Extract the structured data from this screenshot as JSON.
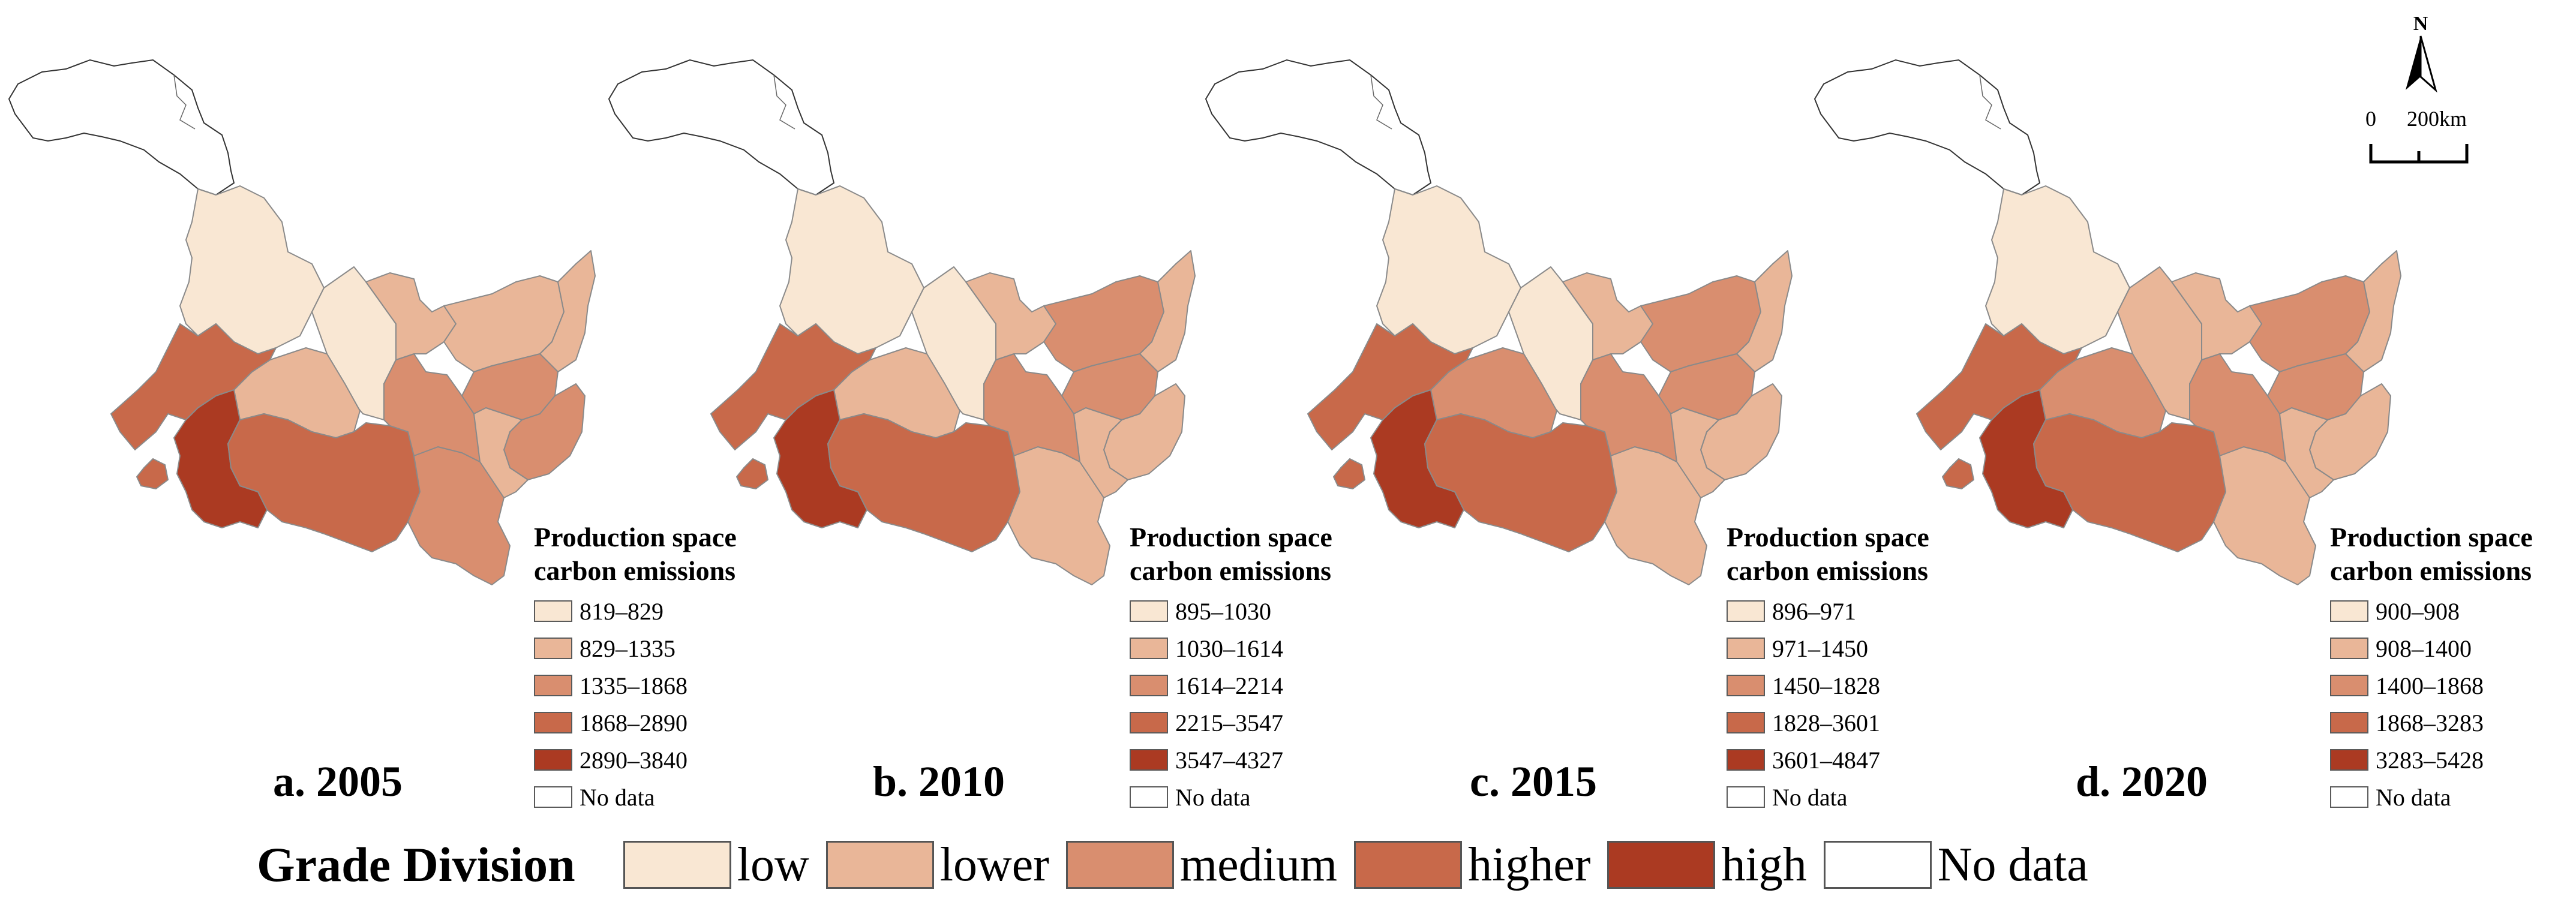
{
  "maps": [
    {
      "label": "a. 2005",
      "fills": [
        "#f9e7d3",
        "#f9e7d3",
        "#e9b698",
        "#c8694a",
        "#c8694a",
        "#ab3a22",
        "#c8694a",
        "#d98e6f",
        "#d98e6f",
        "#e9b698",
        "#e9b698",
        "#e9b698",
        "#d98e6f",
        "#d98e6f",
        "#e9b698"
      ],
      "legend": {
        "title_line1": "Production space",
        "title_line2": "carbon emissions",
        "items": [
          "819–829",
          "829–1335",
          "1335–1868",
          "1868–2890",
          "2890–3840",
          "No data"
        ]
      }
    },
    {
      "label": "b. 2010",
      "fills": [
        "#f9e7d3",
        "#f9e7d3",
        "#e9b698",
        "#c8694a",
        "#c8694a",
        "#ab3a22",
        "#c8694a",
        "#e9b698",
        "#d98e6f",
        "#e9b698",
        "#d98e6f",
        "#e9b698",
        "#d98e6f",
        "#e9b698",
        "#e9b698"
      ],
      "legend": {
        "title_line1": "Production space",
        "title_line2": "carbon emissions",
        "items": [
          "895–1030",
          "1030–1614",
          "1614–2214",
          "2215–3547",
          "3547–4327",
          "No data"
        ]
      }
    },
    {
      "label": "c. 2015",
      "fills": [
        "#f9e7d3",
        "#f9e7d3",
        "#d98e6f",
        "#c8694a",
        "#c8694a",
        "#ab3a22",
        "#c8694a",
        "#e9b698",
        "#d98e6f",
        "#e9b698",
        "#d98e6f",
        "#e9b698",
        "#d98e6f",
        "#e9b698",
        "#e9b698"
      ],
      "legend": {
        "title_line1": "Production space",
        "title_line2": "carbon emissions",
        "items": [
          "896–971",
          "971–1450",
          "1450–1828",
          "1828–3601",
          "3601–4847",
          "No data"
        ]
      }
    },
    {
      "label": "d. 2020",
      "fills": [
        "#f9e7d3",
        "#e9b698",
        "#d98e6f",
        "#c8694a",
        "#c8694a",
        "#ab3a22",
        "#c8694a",
        "#e9b698",
        "#d98e6f",
        "#e9b698",
        "#d98e6f",
        "#e9b698",
        "#d98e6f",
        "#e9b698",
        "#e9b698"
      ],
      "legend": {
        "title_line1": "Production space",
        "title_line2": "carbon emissions",
        "items": [
          "900–908",
          "908–1400",
          "1400–1868",
          "1868–3283",
          "3283–5428",
          "No data"
        ]
      }
    }
  ],
  "legend_colors": [
    "#f9e7d3",
    "#e9b698",
    "#d98e6f",
    "#c8694a",
    "#ab3a22",
    "#ffffff"
  ],
  "grade": {
    "title": "Grade Division",
    "items": [
      {
        "label": "low",
        "color": "#f9e7d3"
      },
      {
        "label": "lower",
        "color": "#e9b698"
      },
      {
        "label": "medium",
        "color": "#d98e6f"
      },
      {
        "label": "higher",
        "color": "#c8694a"
      },
      {
        "label": "high",
        "color": "#ab3a22"
      },
      {
        "label": "No data",
        "color": "#ffffff"
      }
    ]
  },
  "north_arrow": {
    "label": "N",
    "icon": "north-arrow-icon"
  },
  "scale_bar": {
    "zero": "0",
    "distance": "200km"
  }
}
